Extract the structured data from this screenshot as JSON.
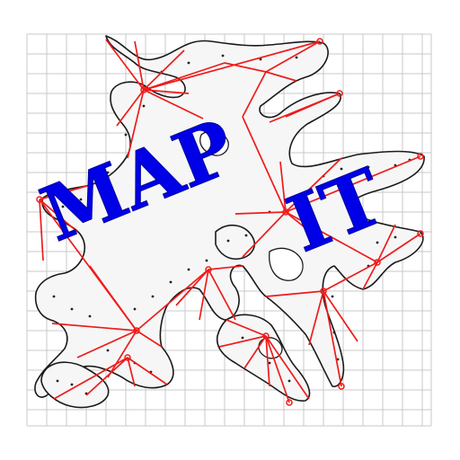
{
  "logo": {
    "word_1": "MAP",
    "word_2": "IT"
  },
  "colors": {
    "background": "#ffffff",
    "grid": "#c9c9c9",
    "outline": "#1a1a1a",
    "survey_lines": "#ee1c1c",
    "title": "#0000e6"
  }
}
